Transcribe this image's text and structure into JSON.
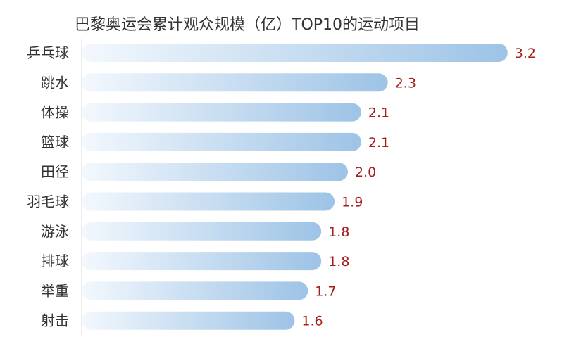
{
  "chart_data": {
    "type": "bar",
    "orientation": "horizontal",
    "title": "巴黎奥运会累计观众规模（亿）TOP10的运动项目",
    "categories": [
      "乒乓球",
      "跳水",
      "体操",
      "篮球",
      "田径",
      "羽毛球",
      "游泳",
      "排球",
      "举重",
      "射击"
    ],
    "values": [
      3.2,
      2.3,
      2.1,
      2.1,
      2.0,
      1.9,
      1.8,
      1.8,
      1.7,
      1.6
    ],
    "value_labels": [
      "3.2",
      "2.3",
      "2.1",
      "2.1",
      "2.0",
      "1.9",
      "1.8",
      "1.8",
      "1.7",
      "1.6"
    ],
    "xlabel": "",
    "ylabel": "",
    "grid": false,
    "legend": "none",
    "colors": {
      "bar_start": "#f3f8fd",
      "bar_end": "#9dc3e6",
      "label": "#a31d1d",
      "axis": "#d9d9d9",
      "text": "#333333"
    }
  }
}
